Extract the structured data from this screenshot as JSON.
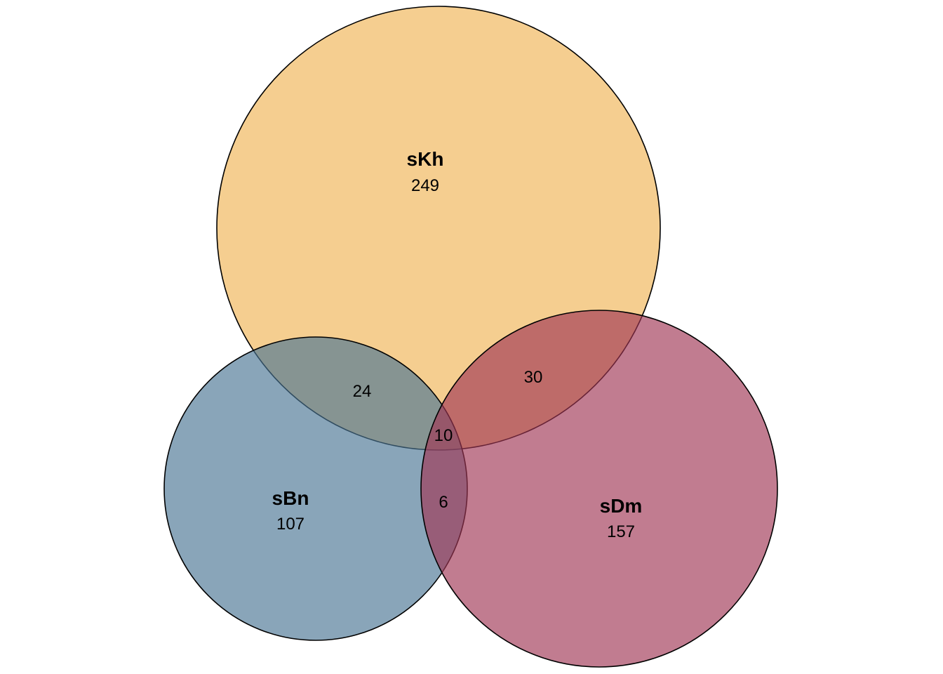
{
  "chart_data": {
    "type": "venn",
    "sets": [
      {
        "key": "kh",
        "name": "sKh",
        "only": "249",
        "color": "#f0b355"
      },
      {
        "key": "bn",
        "name": "sBn",
        "only": "107",
        "color": "#4a7594"
      },
      {
        "key": "dm",
        "name": "sDm",
        "only": "157",
        "color": "#a03555"
      }
    ],
    "intersections": [
      {
        "sets": [
          "sKh",
          "sBn"
        ],
        "count": "24"
      },
      {
        "sets": [
          "sKh",
          "sDm"
        ],
        "count": "30"
      },
      {
        "sets": [
          "sBn",
          "sDm"
        ],
        "count": "6"
      },
      {
        "sets": [
          "sKh",
          "sBn",
          "sDm"
        ],
        "count": "10"
      }
    ]
  }
}
